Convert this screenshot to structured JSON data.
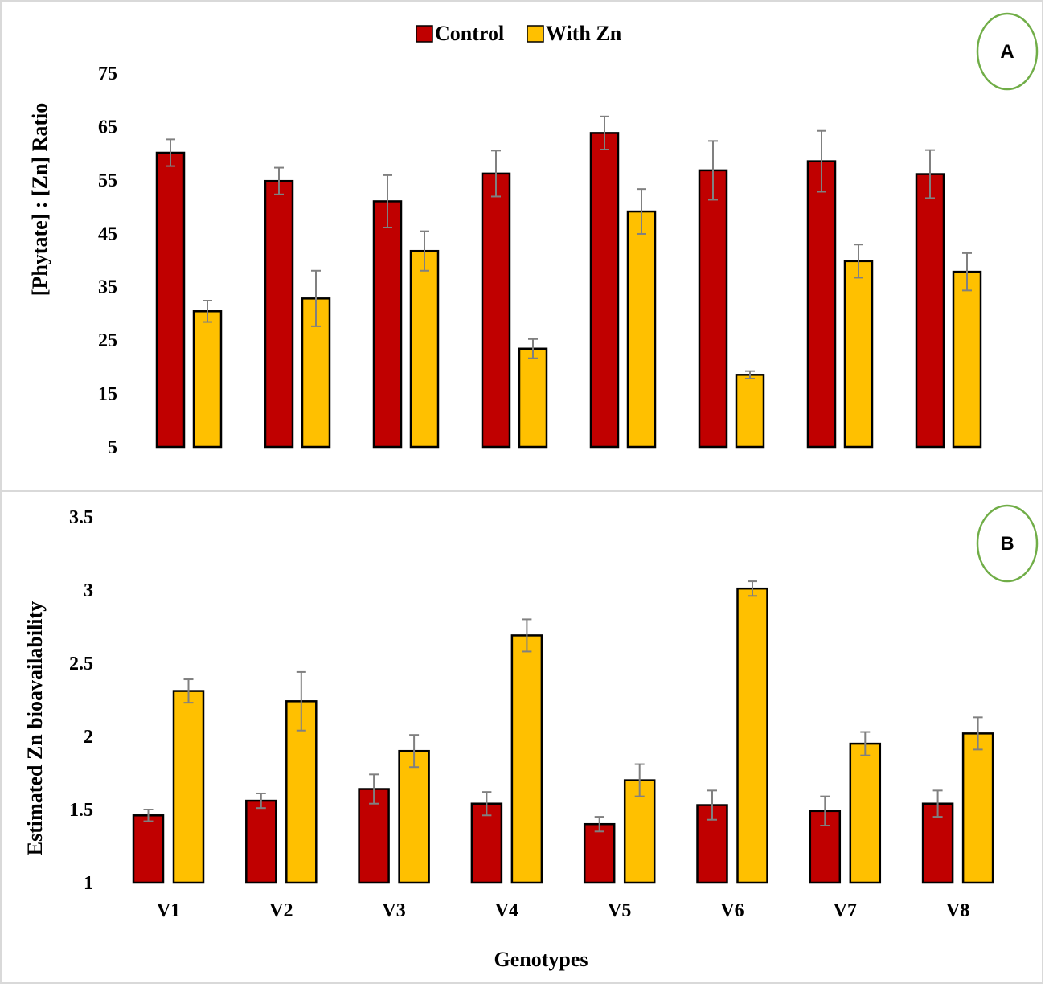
{
  "legend": [
    {
      "name": "Control",
      "color": "#C00000"
    },
    {
      "name": "With Zn",
      "color": "#FFC000"
    }
  ],
  "colors": {
    "control": "#C00000",
    "with_zn": "#FFC000",
    "error_bar": "#808080",
    "circle": "#70AD47"
  },
  "x_title": "Genotypes",
  "chart_data": [
    {
      "panel": "A",
      "type": "bar",
      "ylabel": "[Phytate] : [Zn] Ratio",
      "ylim": [
        5,
        75
      ],
      "yticks": [
        "5",
        "15",
        "25",
        "35",
        "45",
        "55",
        "65",
        "75"
      ],
      "categories": [
        "V1",
        "V2",
        "V3",
        "V4",
        "V5",
        "V6",
        "V7",
        "V8"
      ],
      "series": [
        {
          "name": "Control",
          "values": [
            60.1,
            54.8,
            51.0,
            56.2,
            63.8,
            56.8,
            58.5,
            56.1
          ],
          "errors": [
            2.5,
            2.5,
            4.9,
            4.3,
            3.1,
            5.5,
            5.7,
            4.5
          ]
        },
        {
          "name": "With Zn",
          "values": [
            30.4,
            32.8,
            41.7,
            23.4,
            49.1,
            18.5,
            39.8,
            37.8
          ],
          "errors": [
            2.0,
            5.2,
            3.7,
            1.8,
            4.2,
            0.7,
            3.1,
            3.5
          ]
        }
      ]
    },
    {
      "panel": "B",
      "type": "bar",
      "ylabel": "Estimated Zn bioavailability",
      "xlabel": "Genotypes",
      "ylim": [
        1,
        3.5
      ],
      "yticks": [
        "1",
        "1.5",
        "2",
        "2.5",
        "3",
        "3.5"
      ],
      "categories": [
        "V1",
        "V2",
        "V3",
        "V4",
        "V5",
        "V6",
        "V7",
        "V8"
      ],
      "series": [
        {
          "name": "Control",
          "values": [
            1.46,
            1.56,
            1.64,
            1.54,
            1.4,
            1.53,
            1.49,
            1.54
          ],
          "errors": [
            0.04,
            0.05,
            0.1,
            0.08,
            0.05,
            0.1,
            0.1,
            0.09
          ]
        },
        {
          "name": "With Zn",
          "values": [
            2.31,
            2.24,
            1.9,
            2.69,
            1.7,
            3.01,
            1.95,
            2.02
          ],
          "errors": [
            0.08,
            0.2,
            0.11,
            0.11,
            0.11,
            0.05,
            0.08,
            0.11
          ]
        }
      ]
    }
  ]
}
